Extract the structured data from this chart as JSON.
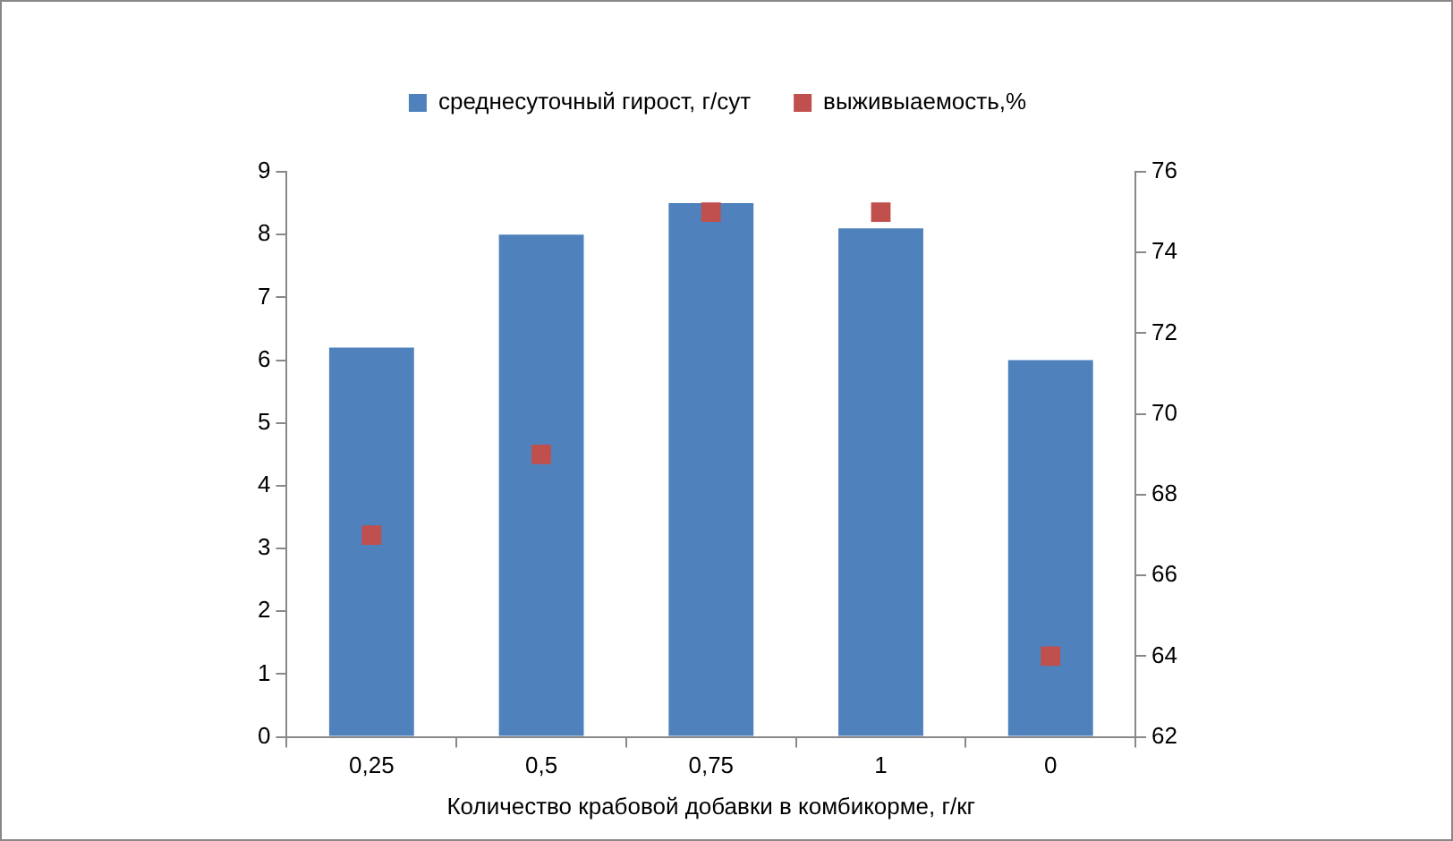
{
  "chart_data": {
    "type": "bar",
    "xlabel": "Количество крабовой добавки в комбикорме, г/кг",
    "categories": [
      "0,25",
      "0,5",
      "0,75",
      "1",
      "0"
    ],
    "series": [
      {
        "name": "среднесуточный гирост, г/сут",
        "color": "#4f81bd",
        "values": [
          6.2,
          8.0,
          8.5,
          8.1,
          6.0
        ]
      },
      {
        "name": "выживыаемость,%",
        "type": "scatter",
        "axis": "y2",
        "marker": "square",
        "color": "#c0504d",
        "x": [
          "0,25",
          "0,5",
          "0,75",
          "1",
          "0"
        ],
        "values": [
          67,
          69,
          75,
          75,
          64
        ]
      }
    ],
    "ylim": [
      0,
      9
    ],
    "yticks": [
      0,
      1,
      2,
      3,
      4,
      5,
      6,
      7,
      8,
      9
    ],
    "y2lim": [
      62,
      76
    ],
    "y2ticks": [
      62,
      64,
      66,
      68,
      70,
      72,
      74,
      76
    ],
    "grid": false,
    "legend": "top"
  }
}
